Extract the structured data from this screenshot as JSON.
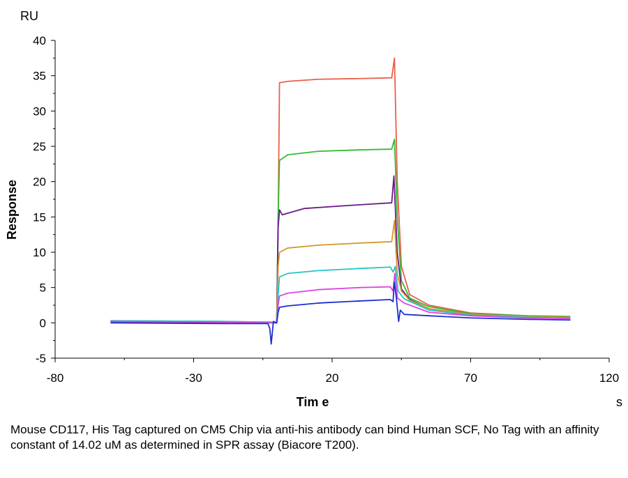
{
  "chart_data": {
    "type": "line",
    "ylabel": "Response",
    "xlabel": "Tim e",
    "y_unit": "RU",
    "x_unit": "s",
    "xlim": [
      -80,
      120
    ],
    "ylim": [
      -5,
      40
    ],
    "x_ticks": [
      -80,
      -30,
      20,
      70,
      120
    ],
    "y_ticks": [
      -5,
      0,
      5,
      10,
      15,
      20,
      25,
      30,
      35,
      40
    ],
    "x_minor_ticks": [
      -55,
      -5,
      45,
      95
    ],
    "grid": false,
    "legend": "none",
    "series": [
      {
        "color": "#e8604a",
        "values": [
          [
            -60,
            0.2
          ],
          [
            -20,
            0.1
          ],
          [
            -2,
            0.1
          ],
          [
            0,
            0.0
          ],
          [
            0.5,
            14.0
          ],
          [
            1.0,
            34.0
          ],
          [
            4,
            34.2
          ],
          [
            15,
            34.5
          ],
          [
            30,
            34.6
          ],
          [
            41.5,
            34.7
          ],
          [
            42.5,
            37.5
          ],
          [
            43.5,
            20.0
          ],
          [
            45,
            8.0
          ],
          [
            48,
            4.0
          ],
          [
            55,
            2.5
          ],
          [
            70,
            1.4
          ],
          [
            90,
            1.0
          ],
          [
            106,
            0.8
          ]
        ]
      },
      {
        "color": "#33bb33",
        "values": [
          [
            -60,
            0.3
          ],
          [
            -20,
            0.2
          ],
          [
            -2,
            0.1
          ],
          [
            0,
            0.0
          ],
          [
            0.5,
            15.0
          ],
          [
            1.0,
            23.0
          ],
          [
            4,
            23.8
          ],
          [
            15,
            24.3
          ],
          [
            30,
            24.5
          ],
          [
            41.5,
            24.6
          ],
          [
            42.5,
            26.0
          ],
          [
            43.5,
            15.0
          ],
          [
            45,
            6.0
          ],
          [
            48,
            3.5
          ],
          [
            55,
            2.3
          ],
          [
            70,
            1.3
          ],
          [
            90,
            1.0
          ],
          [
            106,
            0.9
          ]
        ]
      },
      {
        "color": "#6a1b8a",
        "values": [
          [
            -60,
            0.1
          ],
          [
            -20,
            0.0
          ],
          [
            -2,
            0.0
          ],
          [
            0,
            0.0
          ],
          [
            0.5,
            13.5
          ],
          [
            1.0,
            16.0
          ],
          [
            2,
            15.3
          ],
          [
            10,
            16.2
          ],
          [
            25,
            16.6
          ],
          [
            41.5,
            17.0
          ],
          [
            42.3,
            20.8
          ],
          [
            43.5,
            10.0
          ],
          [
            45,
            4.8
          ],
          [
            48,
            3.3
          ],
          [
            55,
            2.0
          ],
          [
            70,
            1.2
          ],
          [
            90,
            0.9
          ],
          [
            106,
            0.8
          ]
        ]
      },
      {
        "color": "#d4982c",
        "values": [
          [
            -60,
            0.2
          ],
          [
            -20,
            0.1
          ],
          [
            -2,
            0.0
          ],
          [
            0,
            0.0
          ],
          [
            0.5,
            8.0
          ],
          [
            1.0,
            10.0
          ],
          [
            4,
            10.6
          ],
          [
            15,
            11.0
          ],
          [
            30,
            11.3
          ],
          [
            41.5,
            11.5
          ],
          [
            42.5,
            14.5
          ],
          [
            43.5,
            7.0
          ],
          [
            45,
            4.5
          ],
          [
            48,
            3.2
          ],
          [
            55,
            2.0
          ],
          [
            70,
            1.2
          ],
          [
            90,
            0.9
          ],
          [
            106,
            0.8
          ]
        ]
      },
      {
        "color": "#22c6c6",
        "values": [
          [
            -60,
            0.3
          ],
          [
            -20,
            0.2
          ],
          [
            -2,
            0.1
          ],
          [
            0,
            0.0
          ],
          [
            0.5,
            4.0
          ],
          [
            1.0,
            6.5
          ],
          [
            4,
            7.0
          ],
          [
            15,
            7.4
          ],
          [
            30,
            7.7
          ],
          [
            41.0,
            7.9
          ],
          [
            42.0,
            7.2
          ],
          [
            42.8,
            8.0
          ],
          [
            43.8,
            4.5
          ],
          [
            46,
            3.4
          ],
          [
            55,
            1.8
          ],
          [
            70,
            1.1
          ],
          [
            90,
            0.8
          ],
          [
            106,
            0.7
          ]
        ]
      },
      {
        "color": "#e040e0",
        "values": [
          [
            -60,
            0.2
          ],
          [
            -20,
            0.1
          ],
          [
            -2,
            0.0
          ],
          [
            0,
            0.0
          ],
          [
            0.5,
            2.5
          ],
          [
            1.0,
            3.8
          ],
          [
            4,
            4.2
          ],
          [
            15,
            4.7
          ],
          [
            30,
            5.0
          ],
          [
            41.0,
            5.1
          ],
          [
            42.0,
            4.5
          ],
          [
            42.6,
            7.0
          ],
          [
            43.6,
            3.5
          ],
          [
            46,
            2.8
          ],
          [
            55,
            1.5
          ],
          [
            70,
            1.0
          ],
          [
            90,
            0.7
          ],
          [
            106,
            0.6
          ]
        ]
      },
      {
        "color": "#1a2fd0",
        "values": [
          [
            -60,
            0.0
          ],
          [
            -20,
            -0.1
          ],
          [
            -3.2,
            -0.1
          ],
          [
            -2.5,
            -0.8
          ],
          [
            -2.0,
            -3.0
          ],
          [
            -1.2,
            0.2
          ],
          [
            0,
            0.0
          ],
          [
            0.5,
            1.5
          ],
          [
            1.0,
            2.2
          ],
          [
            4,
            2.4
          ],
          [
            15,
            2.8
          ],
          [
            30,
            3.1
          ],
          [
            41.0,
            3.3
          ],
          [
            42.0,
            3.0
          ],
          [
            42.4,
            5.8
          ],
          [
            43.2,
            3.5
          ],
          [
            44.0,
            0.2
          ],
          [
            44.6,
            1.8
          ],
          [
            46,
            1.2
          ],
          [
            55,
            1.0
          ],
          [
            70,
            0.7
          ],
          [
            90,
            0.5
          ],
          [
            106,
            0.4
          ]
        ]
      }
    ]
  },
  "caption": "Mouse CD117, His Tag captured on CM5 Chip via anti-his antibody can bind Human SCF, No Tag with an affinity constant of 14.02 uM as determined in SPR assay (Biacore T200)."
}
